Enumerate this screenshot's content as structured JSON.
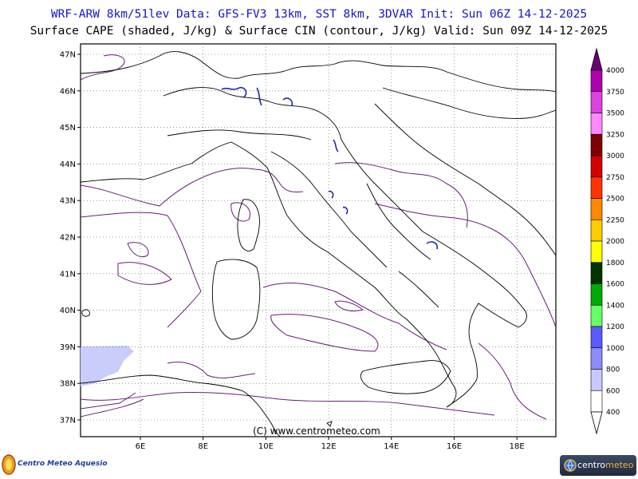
{
  "header": {
    "line1": "WRF-ARW 8km/51lev  Data: GFS-FV3 13km, SST 8km, 3DVAR  Init: Sun 06Z 14-12-2025",
    "line2": "Surface CAPE (shaded, J/kg) & Surface CIN (contour, J/kg)  Valid: Sun 09Z 14-12-2025"
  },
  "map": {
    "lat_labels": [
      "47N",
      "46N",
      "45N",
      "44N",
      "43N",
      "42N",
      "41N",
      "40N",
      "39N",
      "38N",
      "37N"
    ],
    "lon_labels": [
      "6E",
      "8E",
      "10E",
      "12E",
      "14E",
      "16E",
      "18E"
    ],
    "credit": "(C) www.centrometeo.com",
    "coast_color": "#000000",
    "cin_contour_color": "#6a1b78",
    "cape_shade_color": "#c9cdfc",
    "lake_color": "#1a2a9c"
  },
  "colorbar": {
    "levels": [
      "4000",
      "3750",
      "3500",
      "3250",
      "3000",
      "2750",
      "2500",
      "2250",
      "2000",
      "1800",
      "1600",
      "1400",
      "1200",
      "1000",
      "800",
      "600",
      "400"
    ],
    "colors": [
      "#6b0070",
      "#b000b0",
      "#e040e0",
      "#ff88ff",
      "#800000",
      "#d40000",
      "#ff3300",
      "#ff8800",
      "#ffcc00",
      "#ffff00",
      "#003300",
      "#00aa00",
      "#66ff66",
      "#5a5aff",
      "#8c8cff",
      "#c8c8ff",
      "#ffffff"
    ]
  },
  "logos": {
    "left_text": "Centro Meteo Aquesio",
    "right_text_a": "centro",
    "right_text_b": "meteo"
  }
}
